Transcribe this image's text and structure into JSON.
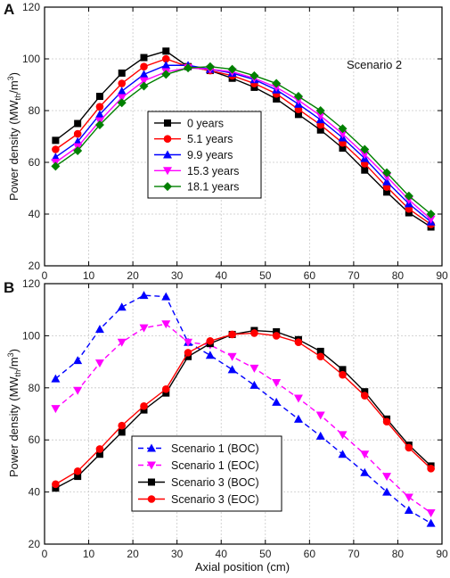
{
  "chart_data": [
    {
      "panel": "A",
      "type": "line",
      "annotation": "Scenario 2",
      "ylabel": "Power density (MW",
      "ylabel_sub": "th",
      "ylabel_end": "/m",
      "ylabel_sup": "3",
      "ylabel_close": ")",
      "xlim": [
        0,
        90
      ],
      "ylim": [
        20,
        120
      ],
      "xticks": [
        0,
        10,
        20,
        30,
        40,
        50,
        60,
        70,
        80,
        90
      ],
      "yticks": [
        20,
        40,
        60,
        80,
        100,
        120
      ],
      "grid": true,
      "legend_position": "center-left",
      "x": [
        2.5,
        7.5,
        12.5,
        17.5,
        22.5,
        27.5,
        32.5,
        37.5,
        42.5,
        47.5,
        52.5,
        57.5,
        62.5,
        67.5,
        72.5,
        77.5,
        82.5,
        87.5
      ],
      "series": [
        {
          "name": "0 years",
          "color": "#000000",
          "marker": "square",
          "dash": "solid",
          "values": [
            68.5,
            75,
            85.5,
            94.5,
            100.5,
            103,
            97,
            95.5,
            92.5,
            89,
            84.5,
            78.5,
            72.5,
            65.5,
            57,
            48.5,
            40.5,
            35
          ]
        },
        {
          "name": "5.1 years",
          "color": "#ff0000",
          "marker": "circle",
          "dash": "solid",
          "values": [
            65,
            71,
            81.5,
            90.5,
            97,
            100,
            97,
            95.5,
            93.5,
            90.5,
            86.5,
            80.5,
            74.5,
            67.5,
            59.5,
            50.5,
            42,
            36
          ]
        },
        {
          "name": "9.9 years",
          "color": "#0000ff",
          "marker": "triangle-up",
          "dash": "solid",
          "values": [
            62,
            68,
            78.5,
            87.5,
            94,
            97.5,
            97.5,
            96,
            94.5,
            92,
            88,
            82.5,
            76.5,
            69.5,
            61.5,
            52.5,
            44,
            37
          ]
        },
        {
          "name": "15.3 years",
          "color": "#ff00ff",
          "marker": "triangle-down",
          "dash": "solid",
          "values": [
            60,
            66,
            76,
            85,
            91.5,
            95,
            96.5,
            96,
            95,
            92.5,
            89,
            84,
            78,
            71,
            63,
            54.5,
            45.5,
            38
          ]
        },
        {
          "name": "18.1 years",
          "color": "#008000",
          "marker": "diamond",
          "dash": "solid",
          "values": [
            58.5,
            64.5,
            74.5,
            83,
            89.5,
            94,
            96.5,
            97,
            96,
            93.5,
            90.5,
            85.5,
            80,
            73,
            65,
            56,
            47,
            40
          ]
        }
      ]
    },
    {
      "panel": "B",
      "type": "line",
      "xlabel": "Axial position (cm)",
      "ylabel": "Power density (MW",
      "ylabel_sub": "th",
      "ylabel_end": "/m",
      "ylabel_sup": "3",
      "ylabel_close": ")",
      "xlim": [
        0,
        90
      ],
      "ylim": [
        20,
        120
      ],
      "xticks": [
        0,
        10,
        20,
        30,
        40,
        50,
        60,
        70,
        80,
        90
      ],
      "yticks": [
        20,
        40,
        60,
        80,
        100,
        120
      ],
      "grid": true,
      "legend_position": "bottom-left",
      "x": [
        2.5,
        7.5,
        12.5,
        17.5,
        22.5,
        27.5,
        32.5,
        37.5,
        42.5,
        47.5,
        52.5,
        57.5,
        62.5,
        67.5,
        72.5,
        77.5,
        82.5,
        87.5
      ],
      "series": [
        {
          "name": "Scenario 1 (BOC)",
          "color": "#0000ff",
          "marker": "triangle-up",
          "dash": "dashed",
          "values": [
            83.5,
            90.5,
            102.5,
            111,
            115.5,
            115,
            97.5,
            92.5,
            87,
            81,
            74.5,
            68,
            61.5,
            54.5,
            47.5,
            40,
            33,
            28
          ]
        },
        {
          "name": "Scenario 1 (EOC)",
          "color": "#ff00ff",
          "marker": "triangle-down",
          "dash": "dashed",
          "values": [
            72,
            79,
            89.5,
            97.5,
            103,
            104.5,
            97.5,
            96.5,
            92,
            87.5,
            82,
            76,
            69.5,
            62,
            54.5,
            46,
            38,
            32
          ]
        },
        {
          "name": "Scenario 3 (BOC)",
          "color": "#000000",
          "marker": "square",
          "dash": "solid",
          "values": [
            41.5,
            46,
            54.5,
            63,
            71.5,
            78,
            92,
            97,
            100.5,
            102,
            101.5,
            98.5,
            94,
            87,
            78.5,
            68,
            58,
            50
          ]
        },
        {
          "name": "Scenario 3 (EOC)",
          "color": "#ff0000",
          "marker": "circle",
          "dash": "solid",
          "values": [
            43,
            48,
            56.5,
            65.5,
            73,
            79.5,
            93.5,
            98,
            100.5,
            101,
            100,
            97.5,
            92,
            85,
            77,
            67,
            57,
            49
          ]
        }
      ]
    }
  ]
}
